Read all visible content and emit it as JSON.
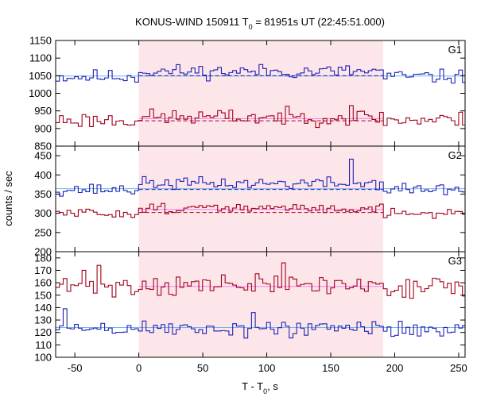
{
  "title": {
    "main": "KONUS-WIND 150911 T",
    "sub": "0",
    "rest": " = 81951s UT (22:45:51.000)"
  },
  "xlabel": {
    "main": "T - T",
    "sub": "0",
    "rest": ", s"
  },
  "ylabel": "counts / sec",
  "colors": {
    "shade": "#fde6e9",
    "red": "#a3001c",
    "blue": "#1e22b8",
    "pink": "#ee82ee",
    "lightblue": "#6fb7ea"
  },
  "chart_data": {
    "type": "line",
    "bin_width": 2.944,
    "x_range": [
      -65,
      255
    ],
    "x_ticks": [
      -50,
      0,
      50,
      100,
      150,
      200,
      250
    ],
    "shaded_interval": [
      0,
      191
    ],
    "panels": [
      {
        "name": "G1",
        "ylim": [
          850,
          1150
        ],
        "y_ticks": [
          850,
          900,
          950,
          1000,
          1050,
          1100,
          1150
        ],
        "series": [
          {
            "color": "blue",
            "baseline": 1047,
            "mean_in": 1062,
            "amp": 14,
            "seed": 11,
            "spikes": []
          },
          {
            "color": "red",
            "baseline": 924,
            "mean_in": 932,
            "amp": 16,
            "seed": 23,
            "spikes": [
              {
                "x": 165,
                "v": 965
              }
            ]
          }
        ],
        "fit": [
          {
            "color": "lightblue",
            "y": 1049,
            "style": "solid",
            "from": -65,
            "to": 255
          },
          {
            "color": "blue",
            "y": 1050,
            "style": "dashed",
            "from": 0,
            "to": 191
          },
          {
            "color": "pink",
            "y": 928,
            "style": "solid",
            "from": 0,
            "to": 191
          },
          {
            "color": "red",
            "y": 922,
            "style": "dashed",
            "from": 0,
            "to": 191
          }
        ]
      },
      {
        "name": "G2",
        "ylim": [
          200,
          475
        ],
        "y_ticks": [
          200,
          250,
          300,
          350,
          400,
          450
        ],
        "series": [
          {
            "color": "blue",
            "baseline": 362,
            "mean_in": 378,
            "amp": 11,
            "seed": 37,
            "spikes": [
              {
                "x": 166,
                "v": 441
              }
            ]
          },
          {
            "color": "red",
            "baseline": 300,
            "mean_in": 313,
            "amp": 9,
            "seed": 51,
            "spikes": []
          }
        ],
        "fit": [
          {
            "color": "lightblue",
            "y": 364,
            "style": "solid",
            "from": -65,
            "to": 255
          },
          {
            "color": "blue",
            "y": 362,
            "style": "dashed",
            "from": 0,
            "to": 191
          },
          {
            "color": "pink",
            "y": 310,
            "style": "solid",
            "from": 0,
            "to": 191
          },
          {
            "color": "red",
            "y": 302,
            "style": "dashed",
            "from": 0,
            "to": 191
          }
        ]
      },
      {
        "name": "G3",
        "ylim": [
          100,
          185
        ],
        "y_ticks": [
          100,
          110,
          120,
          130,
          140,
          150,
          160,
          170,
          180
        ],
        "series": [
          {
            "color": "red",
            "baseline": 157,
            "mean_in": 158,
            "amp": 6,
            "seed": 71,
            "spikes": [
              {
                "x": -30,
                "v": 174
              },
              {
                "x": 112,
                "v": 176
              },
              {
                "x": -42,
                "v": 170
              }
            ]
          },
          {
            "color": "blue",
            "baseline": 123,
            "mean_in": 123,
            "amp": 5,
            "seed": 89,
            "spikes": [
              {
                "x": -58,
                "v": 139
              },
              {
                "x": 90,
                "v": 136
              }
            ]
          }
        ],
        "fit": [
          {
            "color": "lightblue",
            "y": 124,
            "style": "solid",
            "from": -65,
            "to": 255
          },
          {
            "color": "pink",
            "y": 157,
            "style": "solid",
            "from": 0,
            "to": 191
          }
        ]
      }
    ]
  }
}
